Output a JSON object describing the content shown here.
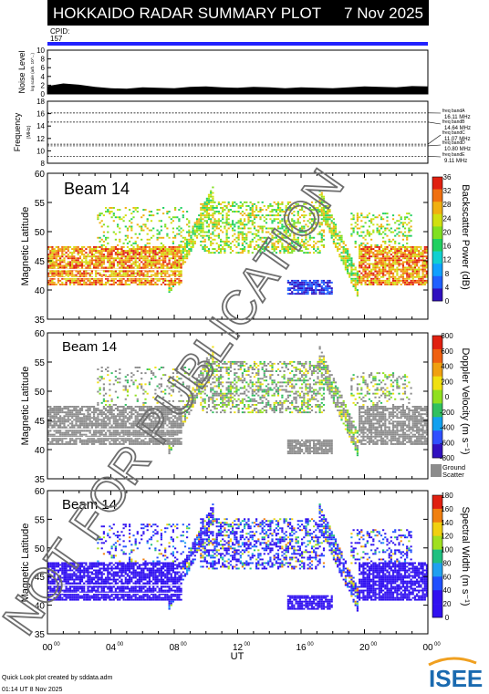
{
  "header": {
    "title": "HOKKAIDO RADAR SUMMARY PLOT",
    "date": "7 Nov 2025",
    "cpid_label": "CPID:",
    "cpid_value": "157"
  },
  "colors": {
    "header_bg": "#000000",
    "cpid_bar": "#2222ff",
    "ground_scatter": "#8c8c8c"
  },
  "watermark": "NOT FOR PUBLICATION",
  "footer": {
    "line1": "Quick Look plot created by sddata.adm",
    "line2": "01:14 UT  8 Nov 2025",
    "logo": "ISEE"
  },
  "chart_data": [
    {
      "type": "area",
      "panel": "noise",
      "ylabel": "Noise Level",
      "ylabel_sub": "log scale (arb. 10^...)",
      "yticks": [
        "10",
        "8",
        "6",
        "4",
        "2",
        "0"
      ],
      "ylim": [
        0,
        10
      ],
      "x_hours": [
        0,
        1,
        2,
        3,
        4,
        5,
        6,
        7,
        8,
        9,
        10,
        11,
        12,
        13,
        14,
        15,
        16,
        17,
        18,
        19,
        20,
        21,
        22,
        23,
        24
      ],
      "values": [
        1.8,
        2.4,
        2.1,
        1.6,
        1.3,
        1.2,
        1.5,
        1.4,
        1.3,
        1.6,
        1.7,
        1.5,
        1.4,
        1.6,
        1.5,
        1.3,
        1.5,
        1.4,
        1.3,
        1.5,
        1.7,
        1.6,
        1.5,
        1.8,
        1.7
      ]
    },
    {
      "type": "line",
      "panel": "frequency",
      "ylabel": "Frequency",
      "ylabel_sub": "(MHz)",
      "yticks": [
        "18",
        "16",
        "14",
        "12",
        "10",
        "8"
      ],
      "ylim": [
        8,
        18
      ],
      "bands": [
        {
          "name": "freq bandA",
          "mhz": "16.11 MHz",
          "value": 16.11
        },
        {
          "name": "freq bandB",
          "mhz": "14.64 MHz",
          "value": 14.64
        },
        {
          "name": "freq bandC",
          "mhz": "11.07 MHz",
          "value": 11.07
        },
        {
          "name": "freq bandD",
          "mhz": "10.80 MHz",
          "value": 10.8
        },
        {
          "name": "freq bandE",
          "mhz": "9.11 MHz",
          "value": 9.11
        }
      ]
    },
    {
      "type": "heatmap",
      "panel": "power",
      "beam_label": "Beam 14",
      "ylabel": "Magnetic Latitude",
      "yticks": [
        "60",
        "55",
        "50",
        "45",
        "40",
        "35"
      ],
      "ylim": [
        35,
        60
      ],
      "colorbar_label": "Backscatter Power (dB)",
      "colorbar_ticks": [
        "36",
        "32",
        "28",
        "24",
        "20",
        "16",
        "12",
        "8",
        "4",
        "0"
      ],
      "colorbar_range": [
        0,
        36
      ]
    },
    {
      "type": "heatmap",
      "panel": "velocity",
      "beam_label": "Beam 14",
      "ylabel": "Magnetic Latitude",
      "yticks": [
        "60",
        "55",
        "50",
        "45",
        "40",
        "35"
      ],
      "ylim": [
        35,
        60
      ],
      "colorbar_label": "Doppler Velocity (m s⁻¹)",
      "colorbar_ticks": [
        "800",
        "600",
        "400",
        "200",
        "0",
        "-200",
        "-400",
        "-600",
        "-800"
      ],
      "colorbar_range": [
        -800,
        800
      ],
      "ground_label_1": "Ground",
      "ground_label_2": "Scatter"
    },
    {
      "type": "heatmap",
      "panel": "width",
      "beam_label": "Beam 14",
      "ylabel": "Magnetic Latitude",
      "yticks": [
        "60",
        "55",
        "50",
        "45",
        "40",
        "35"
      ],
      "ylim": [
        35,
        60
      ],
      "colorbar_label": "Spectral Width (m s⁻¹)",
      "colorbar_ticks": [
        "180",
        "160",
        "140",
        "120",
        "100",
        "80",
        "60",
        "40",
        "20",
        "0"
      ],
      "colorbar_range": [
        0,
        180
      ]
    }
  ],
  "xaxis": {
    "label": "UT",
    "ticks": [
      {
        "hour": "00",
        "sup": "00",
        "value": 0
      },
      {
        "hour": "04",
        "sup": "00",
        "value": 4
      },
      {
        "hour": "08",
        "sup": "00",
        "value": 8
      },
      {
        "hour": "12",
        "sup": "00",
        "value": 12
      },
      {
        "hour": "16",
        "sup": "00",
        "value": 16
      },
      {
        "hour": "20",
        "sup": "00",
        "value": 20
      },
      {
        "hour": "00",
        "sup": "00",
        "value": 24
      }
    ],
    "range": [
      0,
      24
    ]
  }
}
